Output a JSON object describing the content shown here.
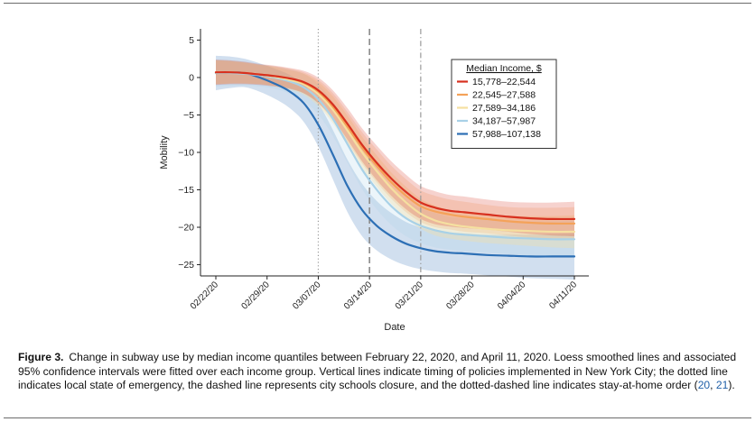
{
  "chart_data": {
    "type": "line",
    "xlabel": "Date",
    "ylabel": "Mobility",
    "ylim": [
      -26.5,
      6.5
    ],
    "yticks": [
      5,
      0,
      -5,
      -10,
      -15,
      -20,
      -25
    ],
    "ytick_labels": [
      "5",
      "0",
      "−5",
      "−10",
      "−15",
      "−20",
      "−25"
    ],
    "xlim": [
      "2020-02-22",
      "2020-04-11"
    ],
    "xtick_labels": [
      "02/22/20",
      "02/29/20",
      "03/07/20",
      "03/14/20",
      "03/21/20",
      "03/28/20",
      "04/04/20",
      "04/11/20"
    ],
    "x": [
      "2020-02-22",
      "2020-02-24",
      "2020-02-26",
      "2020-02-28",
      "2020-03-01",
      "2020-03-03",
      "2020-03-05",
      "2020-03-07",
      "2020-03-09",
      "2020-03-11",
      "2020-03-13",
      "2020-03-15",
      "2020-03-17",
      "2020-03-19",
      "2020-03-21",
      "2020-03-23",
      "2020-03-25",
      "2020-03-27",
      "2020-03-30",
      "2020-04-02",
      "2020-04-05",
      "2020-04-08",
      "2020-04-11"
    ],
    "legend": {
      "title": "Median Income, $",
      "position": "top-right"
    },
    "series": [
      {
        "name": "15,778–22,544",
        "color": "#d7301f",
        "values": [
          0.7,
          0.7,
          0.6,
          0.4,
          0.2,
          -0.1,
          -0.6,
          -1.7,
          -3.6,
          -6.2,
          -9.0,
          -11.4,
          -13.5,
          -15.3,
          -16.7,
          -17.4,
          -17.8,
          -18.0,
          -18.3,
          -18.6,
          -18.8,
          -18.9,
          -18.9
        ],
        "ci_width": [
          1.7,
          1.6,
          1.5,
          1.4,
          1.4,
          1.4,
          1.5,
          1.7,
          1.9,
          2.1,
          2.2,
          2.3,
          2.3,
          2.3,
          2.2,
          2.2,
          2.1,
          2.1,
          2.0,
          2.0,
          2.1,
          2.2,
          2.3
        ]
      },
      {
        "name": "22,545–27,588",
        "color": "#f4a259",
        "values": [
          0.7,
          0.7,
          0.6,
          0.4,
          0.2,
          -0.1,
          -0.7,
          -1.9,
          -3.9,
          -6.6,
          -9.4,
          -11.8,
          -14.0,
          -15.8,
          -17.2,
          -17.9,
          -18.3,
          -18.6,
          -18.9,
          -19.2,
          -19.4,
          -19.5,
          -19.5
        ],
        "ci_width": [
          1.6,
          1.5,
          1.4,
          1.3,
          1.3,
          1.3,
          1.4,
          1.6,
          1.8,
          2.0,
          2.1,
          2.2,
          2.2,
          2.2,
          2.1,
          2.1,
          2.0,
          2.0,
          1.9,
          1.9,
          2.0,
          2.1,
          2.2
        ]
      },
      {
        "name": "27,589–34,186",
        "color": "#f5e0a0",
        "values": [
          0.7,
          0.7,
          0.6,
          0.4,
          0.1,
          -0.3,
          -0.9,
          -2.2,
          -4.3,
          -7.1,
          -10.0,
          -12.5,
          -14.8,
          -16.7,
          -18.2,
          -19.1,
          -19.6,
          -19.9,
          -20.2,
          -20.4,
          -20.5,
          -20.6,
          -20.6
        ],
        "ci_width": [
          1.6,
          1.5,
          1.4,
          1.3,
          1.3,
          1.3,
          1.4,
          1.6,
          1.8,
          2.0,
          2.1,
          2.1,
          2.1,
          2.1,
          2.0,
          2.0,
          1.9,
          1.9,
          1.9,
          1.9,
          2.0,
          2.1,
          2.2
        ]
      },
      {
        "name": "34,187–57,987",
        "color": "#a8d1e7",
        "values": [
          0.6,
          0.6,
          0.5,
          0.3,
          0.0,
          -0.5,
          -1.3,
          -2.9,
          -5.5,
          -8.9,
          -12.3,
          -15.0,
          -17.2,
          -18.8,
          -19.8,
          -20.4,
          -20.8,
          -21.0,
          -21.2,
          -21.4,
          -21.5,
          -21.6,
          -21.6
        ],
        "ci_width": [
          1.8,
          1.7,
          1.6,
          1.5,
          1.5,
          1.6,
          1.8,
          2.0,
          2.3,
          2.5,
          2.6,
          2.6,
          2.5,
          2.4,
          2.3,
          2.3,
          2.2,
          2.2,
          2.2,
          2.2,
          2.3,
          2.4,
          2.5
        ]
      },
      {
        "name": "57,988–107,138",
        "color": "#2c6fb5",
        "values": [
          0.6,
          0.7,
          0.6,
          0.0,
          -0.8,
          -1.8,
          -3.4,
          -6.3,
          -10.3,
          -14.5,
          -17.7,
          -19.8,
          -21.2,
          -22.2,
          -22.8,
          -23.2,
          -23.4,
          -23.5,
          -23.7,
          -23.8,
          -23.9,
          -23.9,
          -23.9
        ],
        "ci_width": [
          2.3,
          2.1,
          1.9,
          1.9,
          2.0,
          2.2,
          2.5,
          2.9,
          3.3,
          3.5,
          3.5,
          3.3,
          3.1,
          2.9,
          2.8,
          2.7,
          2.7,
          2.7,
          2.7,
          2.8,
          2.9,
          3.0,
          3.1
        ]
      }
    ],
    "vertical_lines": [
      {
        "date": "2020-03-07",
        "style": "dotted",
        "color": "#9a9a9a"
      },
      {
        "date": "2020-03-14",
        "style": "dashed",
        "color": "#8a8a8a"
      },
      {
        "date": "2020-03-21",
        "style": "dotdash",
        "color": "#9a9a9a"
      }
    ]
  },
  "caption": {
    "label": "Figure 3.",
    "text": "Change in subway use by median income quantiles between February 22, 2020, and April 11, 2020. Loess smoothed lines and associated 95% confidence intervals were fitted over each income group. Vertical lines indicate timing of policies implemented in New York City; the dotted line indicates local state of emergency, the dashed line represents city schools closure, and the dotted-dashed line indicates stay-at-home order (",
    "ref1": "20",
    "sep": ", ",
    "ref2": "21",
    "end": ")."
  }
}
